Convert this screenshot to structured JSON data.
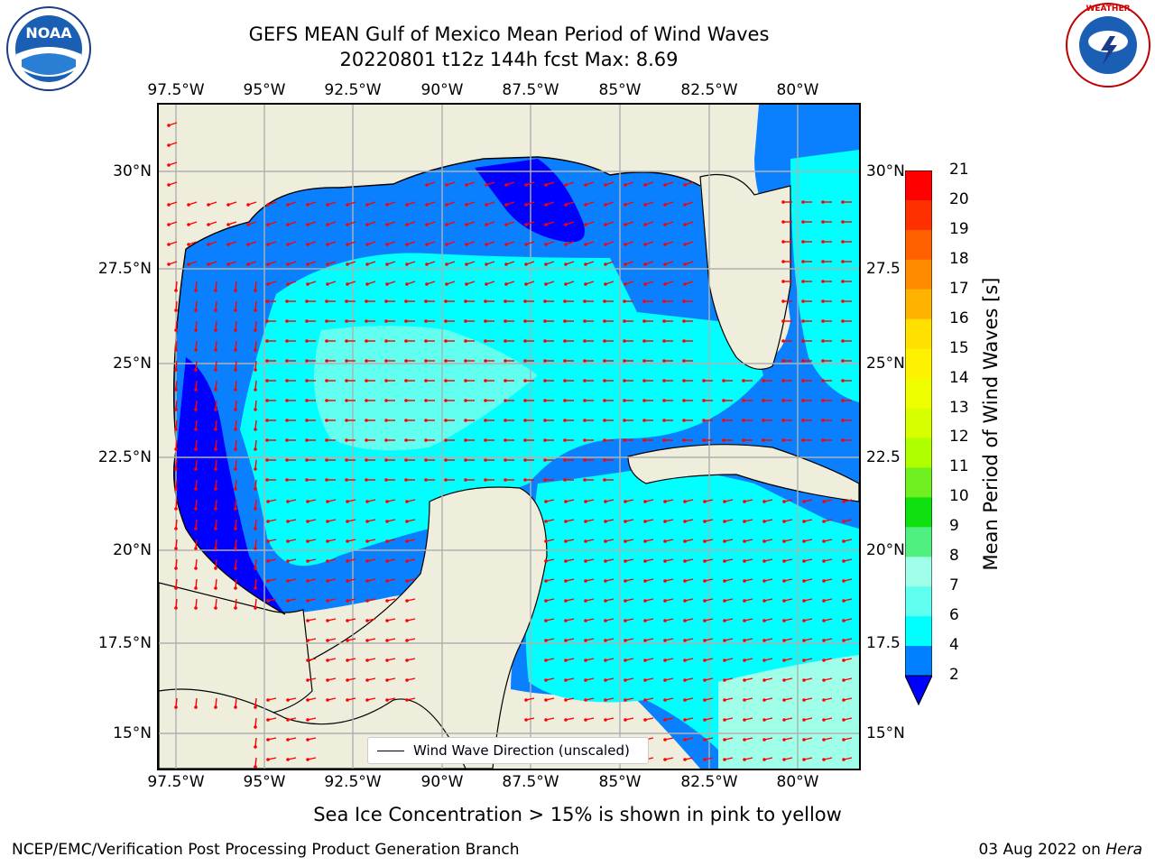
{
  "header": {
    "title_line1": "GEFS MEAN Gulf of Mexico Mean Period of Wind Waves",
    "title_line2": "20220801 t12z 144h fcst   Max: 8.69"
  },
  "axes": {
    "lon_labels": [
      "97.5°W",
      "95°W",
      "92.5°W",
      "90°W",
      "87.5°W",
      "85°W",
      "82.5°W",
      "80°W"
    ],
    "lat_labels_left": [
      "30°N",
      "27.5°N",
      "25°N",
      "22.5°N",
      "20°N",
      "17.5°N",
      "15°N"
    ],
    "lat_labels_right": [
      "30°N",
      "27.5",
      "25°N",
      "22.5",
      "20°N",
      "17.5",
      "15°N"
    ]
  },
  "legend": {
    "wind_wave_label": "Wind Wave Direction (unscaled)"
  },
  "colorbar": {
    "title": "Mean Period of Wind Waves [s]",
    "ticks": [
      "21",
      "20",
      "19",
      "18",
      "17",
      "16",
      "15",
      "14",
      "13",
      "12",
      "11",
      "10",
      "9",
      "8",
      "7",
      "6",
      "4",
      "2"
    ],
    "colors": [
      "#ff0000",
      "#ff3000",
      "#ff6000",
      "#ff8c00",
      "#ffb300",
      "#ffe000",
      "#fff200",
      "#f0ff00",
      "#d8ff00",
      "#b0ff00",
      "#70f020",
      "#10e010",
      "#50f080",
      "#a0ffe8",
      "#60fff0",
      "#00ffff",
      "#0080ff",
      "#0000ff"
    ]
  },
  "colors": {
    "land": "#efeedd",
    "deep_blue": "#0000ff",
    "mid_blue": "#0a80ff",
    "cyan": "#00ffff",
    "light_cyan": "#60fff0",
    "pale_cyan": "#a0ffe8",
    "arrow": "#ff0000",
    "grid": "#b0b0b0"
  },
  "footer": {
    "note": "Sea Ice Concentration > 15% is shown in pink to yellow",
    "credit_left": "NCEP/EMC/Verification Post Processing Product Generation Branch",
    "credit_date": "03 Aug 2022 on ",
    "credit_host": "Hera"
  },
  "logos": {
    "noaa_text": "NOAA",
    "nws_text": "NATIONAL WEATHER SERVICE"
  }
}
